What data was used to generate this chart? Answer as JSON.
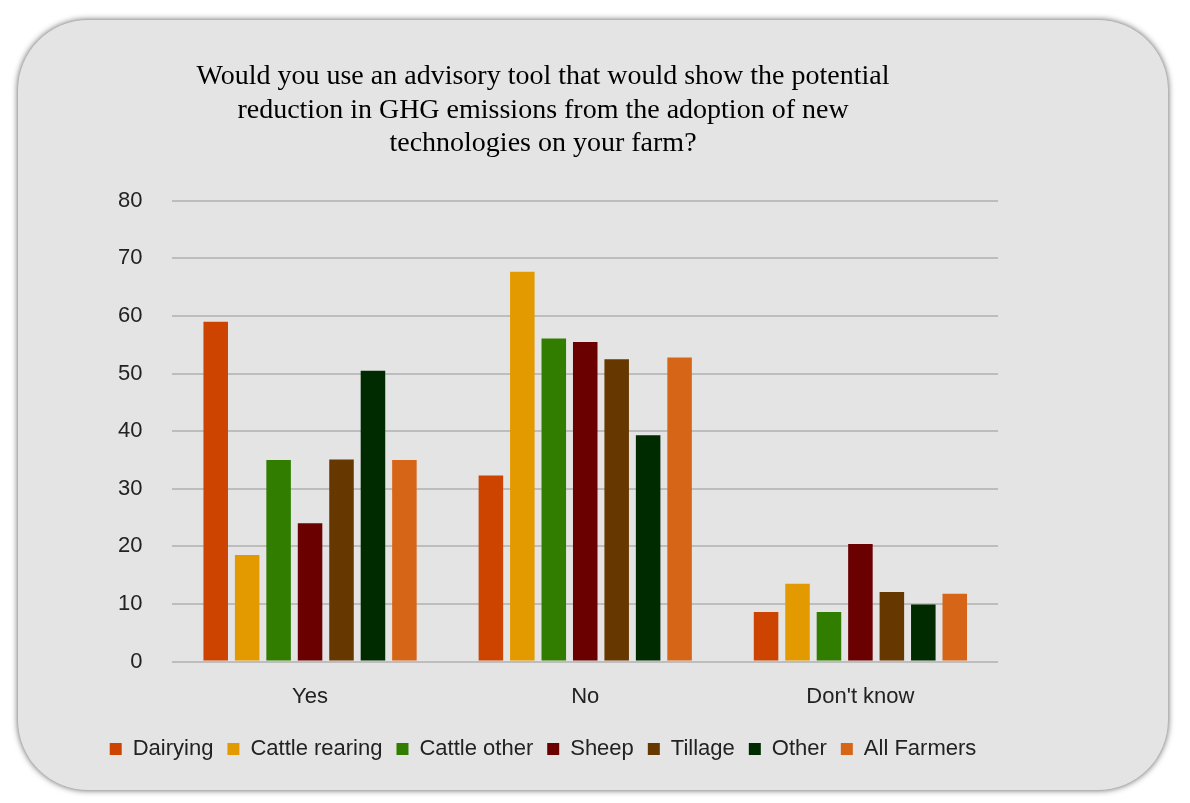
{
  "chart_data": {
    "type": "bar",
    "title": "Would you use an advisory tool that would show the potential reduction in GHG emissions from the adoption of new technologies on your farm?",
    "categories": [
      "Yes",
      "No",
      "Don't know"
    ],
    "series": [
      {
        "name": "Dairying",
        "color": "#cc4400",
        "values": [
          59,
          32.3,
          8.6
        ]
      },
      {
        "name": "Cattle rearing",
        "color": "#e39a00",
        "values": [
          18.5,
          67.7,
          13.5
        ]
      },
      {
        "name": "Cattle other",
        "color": "#307d00",
        "values": [
          35,
          56.1,
          8.6
        ]
      },
      {
        "name": "Sheep",
        "color": "#6b0000",
        "values": [
          24,
          55.5,
          20.4
        ]
      },
      {
        "name": "Tillage",
        "color": "#663800",
        "values": [
          35.1,
          52.5,
          12.1
        ]
      },
      {
        "name": "Other",
        "color": "#002a00",
        "values": [
          50.5,
          39.3,
          9.9
        ]
      },
      {
        "name": "All Farmers",
        "color": "#d76518",
        "values": [
          35,
          52.8,
          11.8
        ]
      }
    ],
    "ylim": [
      0,
      80
    ],
    "yticks": [
      0,
      10,
      20,
      30,
      40,
      50,
      60,
      70,
      80
    ],
    "grid": "y",
    "legend": "bottom"
  }
}
